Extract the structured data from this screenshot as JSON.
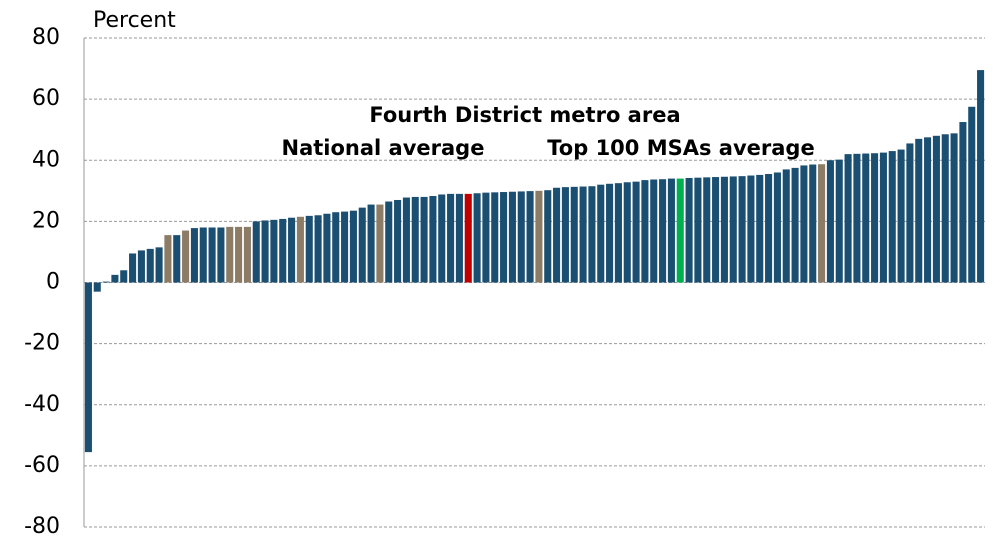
{
  "chart_data": {
    "type": "bar",
    "y_label": "Percent",
    "annotations": [
      {
        "text": "Fourth District metro area",
        "color": "#8c7b65"
      },
      {
        "text": "National average",
        "color": "#c00000"
      },
      {
        "text": "Top 100 MSAs average",
        "color": "#00b050"
      }
    ],
    "categories": [
      null,
      null,
      null,
      null,
      null,
      null,
      null,
      null,
      null,
      null,
      null,
      null,
      null,
      null,
      null,
      null,
      null,
      null,
      null,
      null,
      null,
      null,
      null,
      null,
      null,
      null,
      null,
      null,
      null,
      null,
      null,
      null,
      null,
      null,
      null,
      null,
      null,
      null,
      null,
      null,
      null,
      null,
      null,
      null,
      null,
      null,
      null,
      null,
      null,
      null,
      null,
      null,
      null,
      null,
      null,
      null,
      null,
      null,
      null,
      null,
      null,
      null,
      null,
      null,
      null,
      null,
      null,
      null,
      null,
      null,
      null,
      null,
      null,
      null,
      null,
      null,
      null,
      null,
      null,
      null,
      null,
      null,
      null,
      null,
      null,
      null,
      null,
      null,
      null,
      null,
      null,
      null,
      null,
      null,
      null,
      null,
      null,
      null,
      null,
      null,
      null,
      null
    ],
    "values": [
      -55.5,
      -3,
      0.3,
      2.5,
      4,
      9.5,
      10.5,
      11,
      11.5,
      15.5,
      15.5,
      17,
      17.8,
      18,
      18,
      18,
      18.2,
      18.2,
      18.2,
      20,
      20.3,
      20.5,
      20.8,
      21.2,
      21.5,
      21.8,
      22,
      22.5,
      23,
      23.2,
      23.5,
      24.5,
      25.5,
      25.5,
      26.5,
      27,
      27.8,
      28,
      28,
      28.3,
      28.8,
      29,
      29,
      29,
      29.2,
      29.4,
      29.5,
      29.6,
      29.7,
      29.8,
      29.9,
      30,
      30.2,
      31,
      31.2,
      31.3,
      31.4,
      31.5,
      32,
      32.3,
      32.5,
      32.8,
      33,
      33.5,
      33.7,
      33.8,
      34,
      34,
      34.2,
      34.3,
      34.4,
      34.5,
      34.6,
      34.7,
      34.8,
      35,
      35.2,
      35.5,
      36,
      37,
      37.5,
      38.3,
      38.6,
      38.7,
      40,
      40.2,
      42,
      42.1,
      42.2,
      42.3,
      42.5,
      43,
      43.5,
      45.5,
      47,
      47.5,
      48,
      48.5,
      48.8,
      52.5,
      57.5,
      69.5
    ],
    "colors": [
      "#1a4f72",
      "#1a4f72",
      "#1a4f72",
      "#1a4f72",
      "#1a4f72",
      "#1a4f72",
      "#1a4f72",
      "#1a4f72",
      "#1a4f72",
      "#8c7b65",
      "#1a4f72",
      "#8c7b65",
      "#1a4f72",
      "#1a4f72",
      "#1a4f72",
      "#1a4f72",
      "#8c7b65",
      "#8c7b65",
      "#8c7b65",
      "#1a4f72",
      "#1a4f72",
      "#1a4f72",
      "#1a4f72",
      "#1a4f72",
      "#8c7b65",
      "#1a4f72",
      "#1a4f72",
      "#1a4f72",
      "#1a4f72",
      "#1a4f72",
      "#1a4f72",
      "#1a4f72",
      "#1a4f72",
      "#8c7b65",
      "#1a4f72",
      "#1a4f72",
      "#1a4f72",
      "#1a4f72",
      "#1a4f72",
      "#1a4f72",
      "#1a4f72",
      "#1a4f72",
      "#1a4f72",
      "#c00000",
      "#1a4f72",
      "#1a4f72",
      "#1a4f72",
      "#1a4f72",
      "#1a4f72",
      "#1a4f72",
      "#1a4f72",
      "#8c7b65",
      "#1a4f72",
      "#1a4f72",
      "#1a4f72",
      "#1a4f72",
      "#1a4f72",
      "#1a4f72",
      "#1a4f72",
      "#1a4f72",
      "#1a4f72",
      "#1a4f72",
      "#1a4f72",
      "#1a4f72",
      "#1a4f72",
      "#1a4f72",
      "#1a4f72",
      "#00b050",
      "#1a4f72",
      "#1a4f72",
      "#1a4f72",
      "#1a4f72",
      "#1a4f72",
      "#1a4f72",
      "#1a4f72",
      "#1a4f72",
      "#1a4f72",
      "#1a4f72",
      "#1a4f72",
      "#1a4f72",
      "#1a4f72",
      "#1a4f72",
      "#1a4f72",
      "#8c7b65",
      "#1a4f72",
      "#1a4f72",
      "#1a4f72",
      "#1a4f72",
      "#1a4f72",
      "#1a4f72",
      "#1a4f72",
      "#1a4f72",
      "#1a4f72",
      "#1a4f72",
      "#1a4f72",
      "#1a4f72",
      "#1a4f72",
      "#1a4f72",
      "#1a4f72",
      "#1a4f72",
      "#1a4f72",
      "#1a4f72"
    ],
    "ylim": [
      -80,
      80
    ],
    "yticks": [
      -80,
      -60,
      -40,
      -20,
      0,
      20,
      40,
      60,
      80
    ],
    "grid": true
  }
}
